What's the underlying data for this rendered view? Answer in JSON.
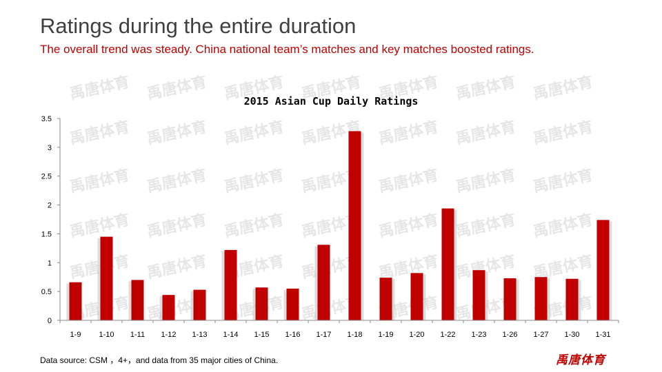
{
  "header": {
    "title": "Ratings during the entire duration",
    "subtitle": "The overall trend was steady. China national team’s matches and key matches boosted ratings."
  },
  "footer": {
    "source": "Data source: CSM  ，4+，and data from 35 major cities of China.",
    "logo_text": "禹唐体育"
  },
  "watermark_text": "禹唐体育",
  "colors": {
    "bar": "#c00000",
    "title": "#404040",
    "subtitle": "#c00000",
    "watermark": "#e6e6e6"
  },
  "chart_data": {
    "type": "bar",
    "title": "2015 Asian Cup Daily Ratings",
    "xlabel": "",
    "ylabel": "",
    "ylim": [
      0,
      3.5
    ],
    "yticks": [
      "0",
      "0.5",
      "1",
      "1.5",
      "2",
      "2.5",
      "3",
      "3.5"
    ],
    "grid": false,
    "legend": "none",
    "categories": [
      "1-9",
      "1-10",
      "1-11",
      "1-12",
      "1-13",
      "1-14",
      "1-15",
      "1-16",
      "1-17",
      "1-18",
      "1-19",
      "1-20",
      "1-22",
      "1-23",
      "1-26",
      "1-27",
      "1-30",
      "1-31"
    ],
    "values": [
      0.66,
      1.45,
      0.7,
      0.44,
      0.53,
      1.22,
      0.57,
      0.55,
      1.31,
      3.28,
      0.74,
      0.82,
      1.94,
      0.87,
      0.73,
      0.75,
      0.72,
      1.74
    ]
  }
}
